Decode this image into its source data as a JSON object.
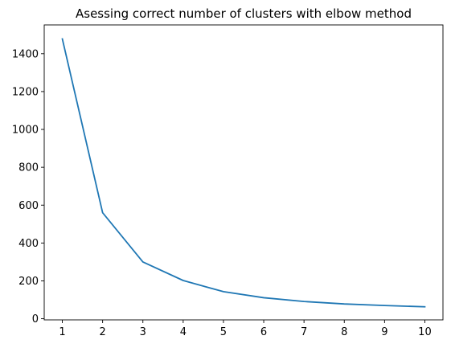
{
  "chart_data": {
    "type": "line",
    "title": "Asessing correct number of clusters with elbow method",
    "xlabel": "",
    "ylabel": "",
    "x": [
      1,
      2,
      3,
      4,
      5,
      6,
      7,
      8,
      9,
      10
    ],
    "series": [
      {
        "color": "#1f77b4",
        "values": [
          1478,
          560,
          300,
          202,
          143,
          111,
          91,
          78,
          70,
          63
        ]
      }
    ],
    "xlim": [
      0.55,
      10.45
    ],
    "ylim": [
      -6,
      1552
    ],
    "xticks": [
      1,
      2,
      3,
      4,
      5,
      6,
      7,
      8,
      9,
      10
    ],
    "yticks": [
      0,
      200,
      400,
      600,
      800,
      1000,
      1200,
      1400
    ],
    "grid": false,
    "legend": "none"
  }
}
